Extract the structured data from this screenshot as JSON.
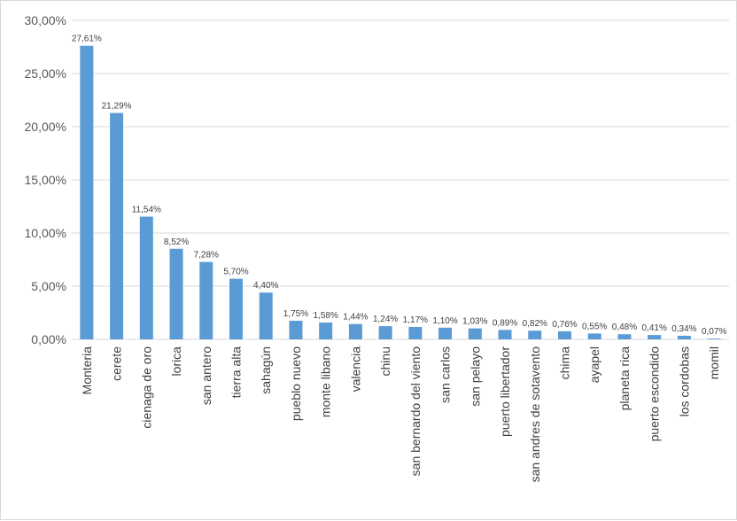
{
  "chart_data": {
    "type": "bar",
    "categories": [
      "Monteria",
      "cerete",
      "cienaga de oro",
      "lorica",
      "san antero",
      "tierra alta",
      "sahagún",
      "pueblo nuevo",
      "monte libano",
      "valencia",
      "chinu",
      "san bernardo del viento",
      "san carlos",
      "san pelayo",
      "puerto libertador",
      "san andres de sotavento",
      "chima",
      "ayapel",
      "planeta rica",
      "puerto escondido",
      "los cordobas",
      "momil"
    ],
    "values": [
      27.61,
      21.29,
      11.54,
      8.52,
      7.28,
      5.7,
      4.4,
      1.75,
      1.58,
      1.44,
      1.24,
      1.17,
      1.1,
      1.03,
      0.89,
      0.82,
      0.76,
      0.55,
      0.48,
      0.41,
      0.34,
      0.07
    ],
    "data_labels": [
      "27,61%",
      "21,29%",
      "11,54%",
      "8,52%",
      "7,28%",
      "5,70%",
      "4,40%",
      "1,75%",
      "1,58%",
      "1,44%",
      "1,24%",
      "1,17%",
      "1,10%",
      "1,03%",
      "0,89%",
      "0,82%",
      "0,76%",
      "0,55%",
      "0,48%",
      "0,41%",
      "0,34%",
      "0,07%"
    ],
    "y_ticks": [
      0,
      5,
      10,
      15,
      20,
      25,
      30
    ],
    "y_tick_labels": [
      "0,00%",
      "5,00%",
      "10,00%",
      "15,00%",
      "20,00%",
      "25,00%",
      "30,00%"
    ],
    "ylim": [
      0,
      30
    ],
    "grid": true,
    "legend": "none",
    "bar_color": "#5b9bd5",
    "grid_color": "#d9d9d9"
  }
}
